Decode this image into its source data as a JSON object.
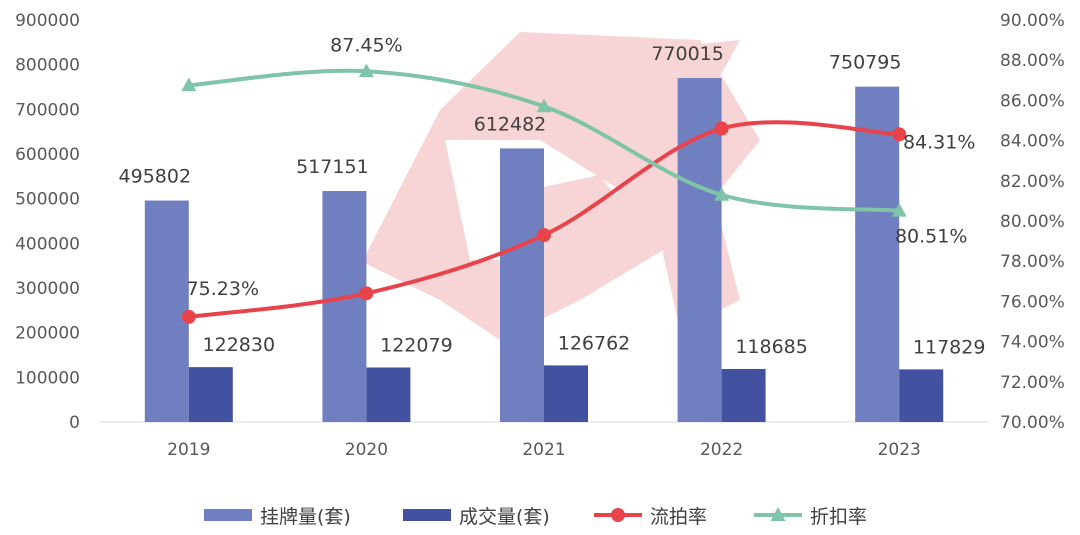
{
  "chart_data": {
    "type": "bar",
    "categories": [
      "2019",
      "2020",
      "2021",
      "2022",
      "2023"
    ],
    "left_axis": {
      "min": 0,
      "max": 900000,
      "step": 100000,
      "ticks": [
        "0",
        "100000",
        "200000",
        "300000",
        "400000",
        "500000",
        "600000",
        "700000",
        "800000",
        "900000"
      ]
    },
    "right_axis": {
      "min": 70,
      "max": 90,
      "step": 2,
      "ticks": [
        "70.00%",
        "72.00%",
        "74.00%",
        "76.00%",
        "78.00%",
        "80.00%",
        "82.00%",
        "84.00%",
        "86.00%",
        "88.00%",
        "90.00%"
      ]
    },
    "series": [
      {
        "name": "挂牌量(套)",
        "kind": "bar",
        "axis": "left",
        "color": "#6F7FC0",
        "values": [
          495802,
          517151,
          612482,
          770015,
          750795
        ],
        "labels": [
          "495802",
          "517151",
          "612482",
          "770015",
          "750795"
        ]
      },
      {
        "name": "成交量(套)",
        "kind": "bar",
        "axis": "left",
        "color": "#4352A0",
        "values": [
          122830,
          122079,
          126762,
          118685,
          117829
        ],
        "labels": [
          "122830",
          "122079",
          "126762",
          "118685",
          "117829"
        ]
      },
      {
        "name": "流拍率",
        "kind": "line",
        "marker": "circle",
        "axis": "right",
        "color": "#E8434A",
        "values": [
          75.23,
          76.4,
          79.3,
          84.6,
          84.31
        ],
        "labels": [
          "75.23%",
          "",
          "",
          "",
          "84.31%"
        ]
      },
      {
        "name": "折扣率",
        "kind": "line",
        "marker": "triangle",
        "axis": "right",
        "color": "#7FC4A8",
        "values": [
          86.75,
          87.45,
          85.7,
          81.3,
          80.51
        ],
        "labels": [
          "",
          "87.45%",
          "",
          "",
          "80.51%"
        ]
      }
    ],
    "legend_position": "bottom",
    "grid": false
  }
}
